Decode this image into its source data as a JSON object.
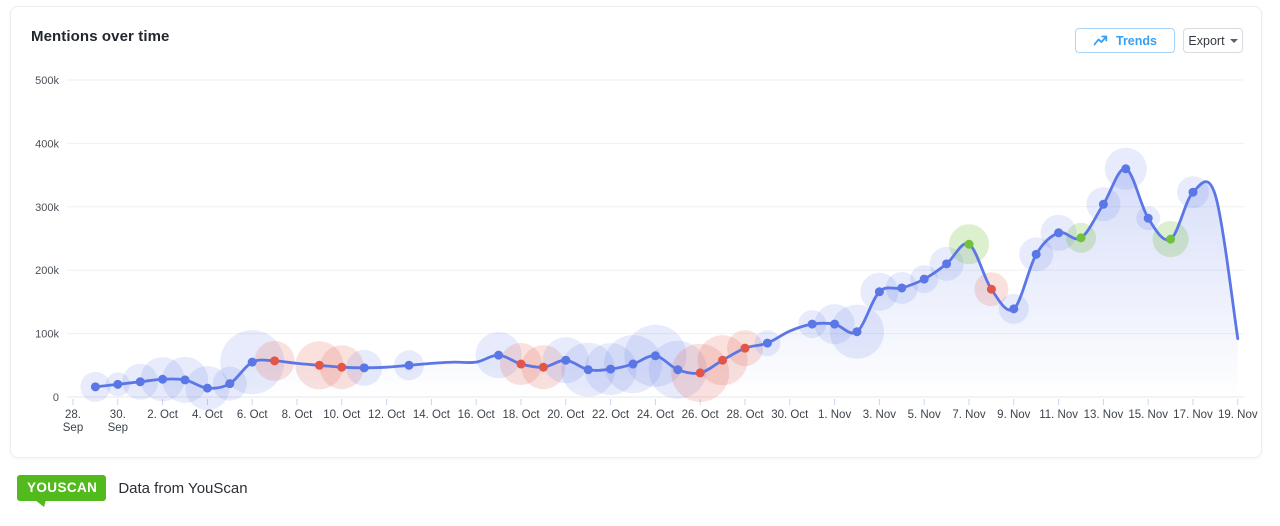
{
  "card": {
    "title": "Mentions over time"
  },
  "toolbar": {
    "trends_label": "Trends",
    "export_label": "Export"
  },
  "footer": {
    "logo_text": "YOUSCAN",
    "caption": "Data from YouScan"
  },
  "colors": {
    "line": "#5b77e6",
    "blue": "#5b77e6",
    "red": "#e2564a",
    "green": "#72c13d",
    "halo_blue": "rgba(91,119,230,0.15)",
    "halo_red": "rgba(226,86,74,0.18)",
    "halo_green": "rgba(114,193,61,0.25)",
    "area_top": "rgba(91,119,230,0.34)",
    "area_bottom": "rgba(91,119,230,0)",
    "grid": "#eef0f2",
    "axis_line": "#e4e7ea",
    "tick": "#c9d5ea",
    "axis_label": "#3c434d",
    "trends_blue": "#38a0f2"
  },
  "chart_data": {
    "type": "area",
    "title": "Mentions over time",
    "xlabel": "",
    "ylabel": "",
    "ylim": [
      0,
      500000
    ],
    "grid": true,
    "legend": "none",
    "yticks": [
      {
        "value": 0,
        "label": "0"
      },
      {
        "value": 100000,
        "label": "100k"
      },
      {
        "value": 200000,
        "label": "200k"
      },
      {
        "value": 300000,
        "label": "300k"
      },
      {
        "value": 400000,
        "label": "400k"
      },
      {
        "value": 500000,
        "label": "500k"
      }
    ],
    "xtick_labels": [
      "28.\nSep",
      "30.\nSep",
      "2. Oct",
      "4. Oct",
      "6. Oct",
      "8. Oct",
      "10. Oct",
      "12. Oct",
      "14. Oct",
      "16. Oct",
      "18. Oct",
      "20. Oct",
      "22. Oct",
      "24. Oct",
      "26. Oct",
      "28. Oct",
      "30. Oct",
      "1. Nov",
      "3. Nov",
      "5. Nov",
      "7. Nov",
      "9. Nov",
      "11. Nov",
      "13. Nov",
      "15. Nov",
      "17. Nov",
      "19. Nov"
    ],
    "xtick_day_step": 2,
    "points": [
      {
        "day": 1,
        "date": "29. Sep",
        "value": 16000,
        "marker": "blue",
        "halo": 15
      },
      {
        "day": 2,
        "date": "30. Sep",
        "value": 20000,
        "marker": "blue",
        "halo": 12
      },
      {
        "day": 3,
        "date": "1. Oct",
        "value": 24000,
        "marker": "blue",
        "halo": 18
      },
      {
        "day": 4,
        "date": "2. Oct",
        "value": 28000,
        "marker": "blue",
        "halo": 22
      },
      {
        "day": 5,
        "date": "3. Oct",
        "value": 27000,
        "marker": "blue",
        "halo": 23
      },
      {
        "day": 6,
        "date": "4. Oct",
        "value": 14000,
        "marker": "blue",
        "halo": 22
      },
      {
        "day": 7,
        "date": "5. Oct",
        "value": 21000,
        "marker": "blue",
        "halo": 17
      },
      {
        "day": 8,
        "date": "6. Oct",
        "value": 55000,
        "marker": "blue",
        "halo": 32
      },
      {
        "day": 9,
        "date": "7. Oct",
        "value": 57000,
        "marker": "red",
        "halo": 20
      },
      {
        "day": 10,
        "date": "8. Oct",
        "value": 53000,
        "marker": "none",
        "halo": 0
      },
      {
        "day": 11,
        "date": "9. Oct",
        "value": 50000,
        "marker": "red",
        "halo": 24
      },
      {
        "day": 12,
        "date": "10. Oct",
        "value": 47000,
        "marker": "red",
        "halo": 22
      },
      {
        "day": 13,
        "date": "11. Oct",
        "value": 46000,
        "marker": "blue",
        "halo": 18
      },
      {
        "day": 14,
        "date": "12. Oct",
        "value": 47000,
        "marker": "none",
        "halo": 0
      },
      {
        "day": 15,
        "date": "13. Oct",
        "value": 50000,
        "marker": "blue",
        "halo": 15
      },
      {
        "day": 16,
        "date": "14. Oct",
        "value": 53000,
        "marker": "none",
        "halo": 0
      },
      {
        "day": 17,
        "date": "15. Oct",
        "value": 55000,
        "marker": "none",
        "halo": 0
      },
      {
        "day": 18,
        "date": "16. Oct",
        "value": 55000,
        "marker": "none",
        "halo": 0
      },
      {
        "day": 19,
        "date": "17. Oct",
        "value": 66000,
        "marker": "blue",
        "halo": 23
      },
      {
        "day": 20,
        "date": "18. Oct",
        "value": 52000,
        "marker": "red",
        "halo": 21
      },
      {
        "day": 21,
        "date": "19. Oct",
        "value": 47000,
        "marker": "red",
        "halo": 22
      },
      {
        "day": 22,
        "date": "20. Oct",
        "value": 58000,
        "marker": "blue",
        "halo": 23
      },
      {
        "day": 23,
        "date": "21. Oct",
        "value": 43000,
        "marker": "blue",
        "halo": 27
      },
      {
        "day": 24,
        "date": "22. Oct",
        "value": 44000,
        "marker": "blue",
        "halo": 26
      },
      {
        "day": 25,
        "date": "23. Oct",
        "value": 52000,
        "marker": "blue",
        "halo": 29
      },
      {
        "day": 26,
        "date": "24. Oct",
        "value": 65000,
        "marker": "blue",
        "halo": 31
      },
      {
        "day": 27,
        "date": "25. Oct",
        "value": 43000,
        "marker": "blue",
        "halo": 29
      },
      {
        "day": 28,
        "date": "26. Oct",
        "value": 38000,
        "marker": "red",
        "halo": 29
      },
      {
        "day": 29,
        "date": "27. Oct",
        "value": 58000,
        "marker": "red",
        "halo": 25
      },
      {
        "day": 30,
        "date": "28. Oct",
        "value": 77000,
        "marker": "red",
        "halo": 18
      },
      {
        "day": 31,
        "date": "29. Oct",
        "value": 85000,
        "marker": "blue",
        "halo": 13
      },
      {
        "day": 32,
        "date": "30. Oct",
        "value": 104000,
        "marker": "none",
        "halo": 0
      },
      {
        "day": 33,
        "date": "31. Oct",
        "value": 115000,
        "marker": "blue",
        "halo": 14
      },
      {
        "day": 34,
        "date": "1. Nov",
        "value": 115000,
        "marker": "blue",
        "halo": 20
      },
      {
        "day": 35,
        "date": "2. Nov",
        "value": 103000,
        "marker": "blue",
        "halo": 27
      },
      {
        "day": 36,
        "date": "3. Nov",
        "value": 166000,
        "marker": "blue",
        "halo": 19
      },
      {
        "day": 37,
        "date": "4. Nov",
        "value": 172000,
        "marker": "blue",
        "halo": 16
      },
      {
        "day": 38,
        "date": "5. Nov",
        "value": 186000,
        "marker": "blue",
        "halo": 14
      },
      {
        "day": 39,
        "date": "6. Nov",
        "value": 210000,
        "marker": "blue",
        "halo": 17
      },
      {
        "day": 40,
        "date": "7. Nov",
        "value": 241000,
        "marker": "green",
        "halo": 20
      },
      {
        "day": 41,
        "date": "8. Nov",
        "value": 170000,
        "marker": "red",
        "halo": 17
      },
      {
        "day": 42,
        "date": "9. Nov",
        "value": 139000,
        "marker": "blue",
        "halo": 15
      },
      {
        "day": 43,
        "date": "10. Nov",
        "value": 225000,
        "marker": "blue",
        "halo": 17
      },
      {
        "day": 44,
        "date": "11. Nov",
        "value": 259000,
        "marker": "blue",
        "halo": 18
      },
      {
        "day": 45,
        "date": "12. Nov",
        "value": 251000,
        "marker": "green",
        "halo": 15
      },
      {
        "day": 46,
        "date": "13. Nov",
        "value": 304000,
        "marker": "blue",
        "halo": 17
      },
      {
        "day": 47,
        "date": "14. Nov",
        "value": 360000,
        "marker": "blue",
        "halo": 21
      },
      {
        "day": 48,
        "date": "15. Nov",
        "value": 282000,
        "marker": "blue",
        "halo": 12
      },
      {
        "day": 49,
        "date": "16. Nov",
        "value": 249000,
        "marker": "green",
        "halo": 18
      },
      {
        "day": 50,
        "date": "17. Nov",
        "value": 323000,
        "marker": "blue",
        "halo": 16
      },
      {
        "day": 51,
        "date": "18. Nov",
        "value": 318000,
        "marker": "none",
        "halo": 0
      },
      {
        "day": 52,
        "date": "19. Nov",
        "value": 92000,
        "marker": "none",
        "halo": 0
      }
    ]
  }
}
